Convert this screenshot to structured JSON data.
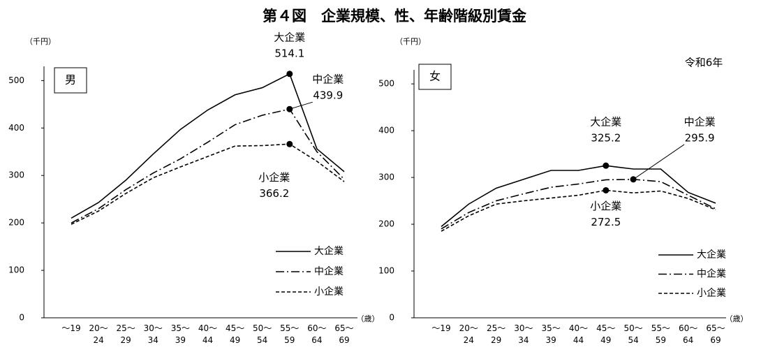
{
  "title": "第４図　企業規模、性、年齢階級別賃金",
  "chart_data": [
    {
      "type": "line",
      "panel_label": "男",
      "y_unit": "（千円）",
      "x_unit": "（歳）",
      "categories": [
        "～19",
        "20～\n24",
        "25～\n29",
        "30～\n34",
        "35～\n39",
        "40～\n44",
        "45～\n49",
        "50～\n54",
        "55～\n59",
        "60～\n64",
        "65～\n69"
      ],
      "ylim": [
        0,
        530
      ],
      "yticks": [
        0,
        100,
        200,
        300,
        400,
        500
      ],
      "legend": "lower right",
      "series": [
        {
          "name": "大企業",
          "color": "#000000",
          "dash": "solid",
          "values": [
            210,
            243,
            290,
            345,
            397,
            438,
            470,
            485,
            514.1,
            356,
            308
          ],
          "value_labels": [
            null,
            null,
            null,
            null,
            null,
            null,
            null,
            null,
            "514.1",
            null,
            null
          ]
        },
        {
          "name": "中企業",
          "color": "#000000",
          "dash": "dashdot",
          "values": [
            200,
            230,
            270,
            305,
            335,
            370,
            407,
            427,
            439.9,
            350,
            292
          ],
          "value_labels": [
            null,
            null,
            null,
            null,
            null,
            null,
            null,
            null,
            "439.9",
            null,
            null
          ]
        },
        {
          "name": "小企業",
          "color": "#000000",
          "dash": "dashed",
          "values": [
            197,
            225,
            262,
            295,
            318,
            340,
            362,
            363,
            366.2,
            330,
            287
          ],
          "value_labels": [
            null,
            null,
            null,
            null,
            null,
            null,
            null,
            null,
            "366.2",
            null,
            null
          ]
        }
      ]
    },
    {
      "type": "line",
      "panel_label": "女",
      "y_unit": "（千円）",
      "x_unit": "（歳）",
      "note": "令和6年",
      "categories": [
        "～19",
        "20～\n24",
        "25～\n29",
        "30～\n34",
        "35～\n39",
        "40～\n44",
        "45～\n49",
        "50～\n54",
        "55～\n59",
        "60～\n64",
        "65～\n69"
      ],
      "ylim": [
        0,
        530
      ],
      "yticks": [
        0,
        100,
        200,
        300,
        400,
        500
      ],
      "legend": "lower right",
      "series": [
        {
          "name": "大企業",
          "color": "#000000",
          "dash": "solid",
          "values": [
            195,
            243,
            277,
            296,
            315,
            315,
            325.2,
            318,
            318,
            268,
            245
          ],
          "value_labels": [
            null,
            null,
            null,
            null,
            null,
            null,
            "325.2",
            null,
            null,
            null,
            null
          ]
        },
        {
          "name": "中企業",
          "color": "#000000",
          "dash": "dashdot",
          "values": [
            190,
            225,
            250,
            265,
            279,
            286,
            295,
            295.9,
            291,
            262,
            233
          ],
          "value_labels": [
            null,
            null,
            null,
            null,
            null,
            null,
            null,
            "295.9",
            null,
            null,
            null
          ]
        },
        {
          "name": "小企業",
          "color": "#000000",
          "dash": "dashed",
          "values": [
            185,
            218,
            243,
            250,
            256,
            262,
            272.5,
            267,
            271,
            255,
            231
          ],
          "value_labels": [
            null,
            null,
            null,
            null,
            null,
            null,
            "272.5",
            null,
            null,
            null,
            null
          ]
        }
      ]
    }
  ]
}
